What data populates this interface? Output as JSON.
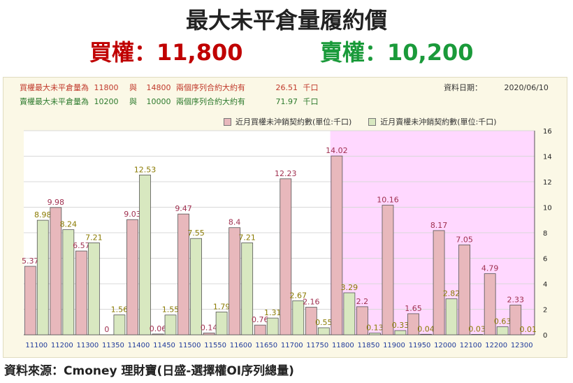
{
  "header": {
    "title": "最大未平倉量履約價",
    "call_label": "買權：11,800",
    "put_label": "賣權：10,200"
  },
  "info": {
    "row1": [
      "買權最大未平倉量為",
      "11800",
      "與",
      "14800",
      "兩個序列合約大約有",
      "26.51",
      "千口"
    ],
    "row2": [
      "賣權最大未平倉量為",
      "10200",
      "與",
      "10000",
      "兩個序列合約大約有",
      "71.97",
      "千口"
    ],
    "date_label": "資料日期：",
    "date_value": "2020/06/10"
  },
  "legend": {
    "call": "近月買權未沖銷契約數(單位:千口)",
    "put": "近月賣權未沖銷契約數(單位:千口)"
  },
  "colors": {
    "call_fill": "#e8b8bc",
    "put_fill": "#d8e8c0",
    "call_label": "#a03050",
    "put_label": "#8a7a00",
    "highlight": "#ffd8ff",
    "axis_text": "#1f3a9a"
  },
  "chart_data": {
    "type": "bar",
    "categories": [
      "11100",
      "11200",
      "11300",
      "11350",
      "11400",
      "11450",
      "11500",
      "11550",
      "11600",
      "11650",
      "11700",
      "11750",
      "11800",
      "11850",
      "11900",
      "11950",
      "12000",
      "12100",
      "12200",
      "12300"
    ],
    "series": [
      {
        "name": "近月買權未沖銷契約數(單位:千口)",
        "values": [
          5.37,
          9.98,
          6.57,
          0,
          9.03,
          0.06,
          9.47,
          0.14,
          8.4,
          0.76,
          12.23,
          2.16,
          14.02,
          2.2,
          10.16,
          1.65,
          8.17,
          7.05,
          4.79,
          2.33
        ]
      },
      {
        "name": "近月賣權未沖銷契約數(單位:千口)",
        "values": [
          8.98,
          8.24,
          7.21,
          1.56,
          12.53,
          1.55,
          7.55,
          1.79,
          7.21,
          1.31,
          2.67,
          0.55,
          3.29,
          0.13,
          0.33,
          0.04,
          2.82,
          0.03,
          0.63,
          0.01
        ]
      }
    ],
    "ylim": [
      0,
      16
    ],
    "yticks": [
      0,
      2,
      4,
      6,
      8,
      10,
      12,
      14,
      16
    ],
    "highlight_from_category": "11800",
    "grid": true,
    "legend_position": "top-right"
  },
  "footer": {
    "source": "資料來源：Cmoney 理財寶(日盛-選擇權OI序列總量)"
  }
}
